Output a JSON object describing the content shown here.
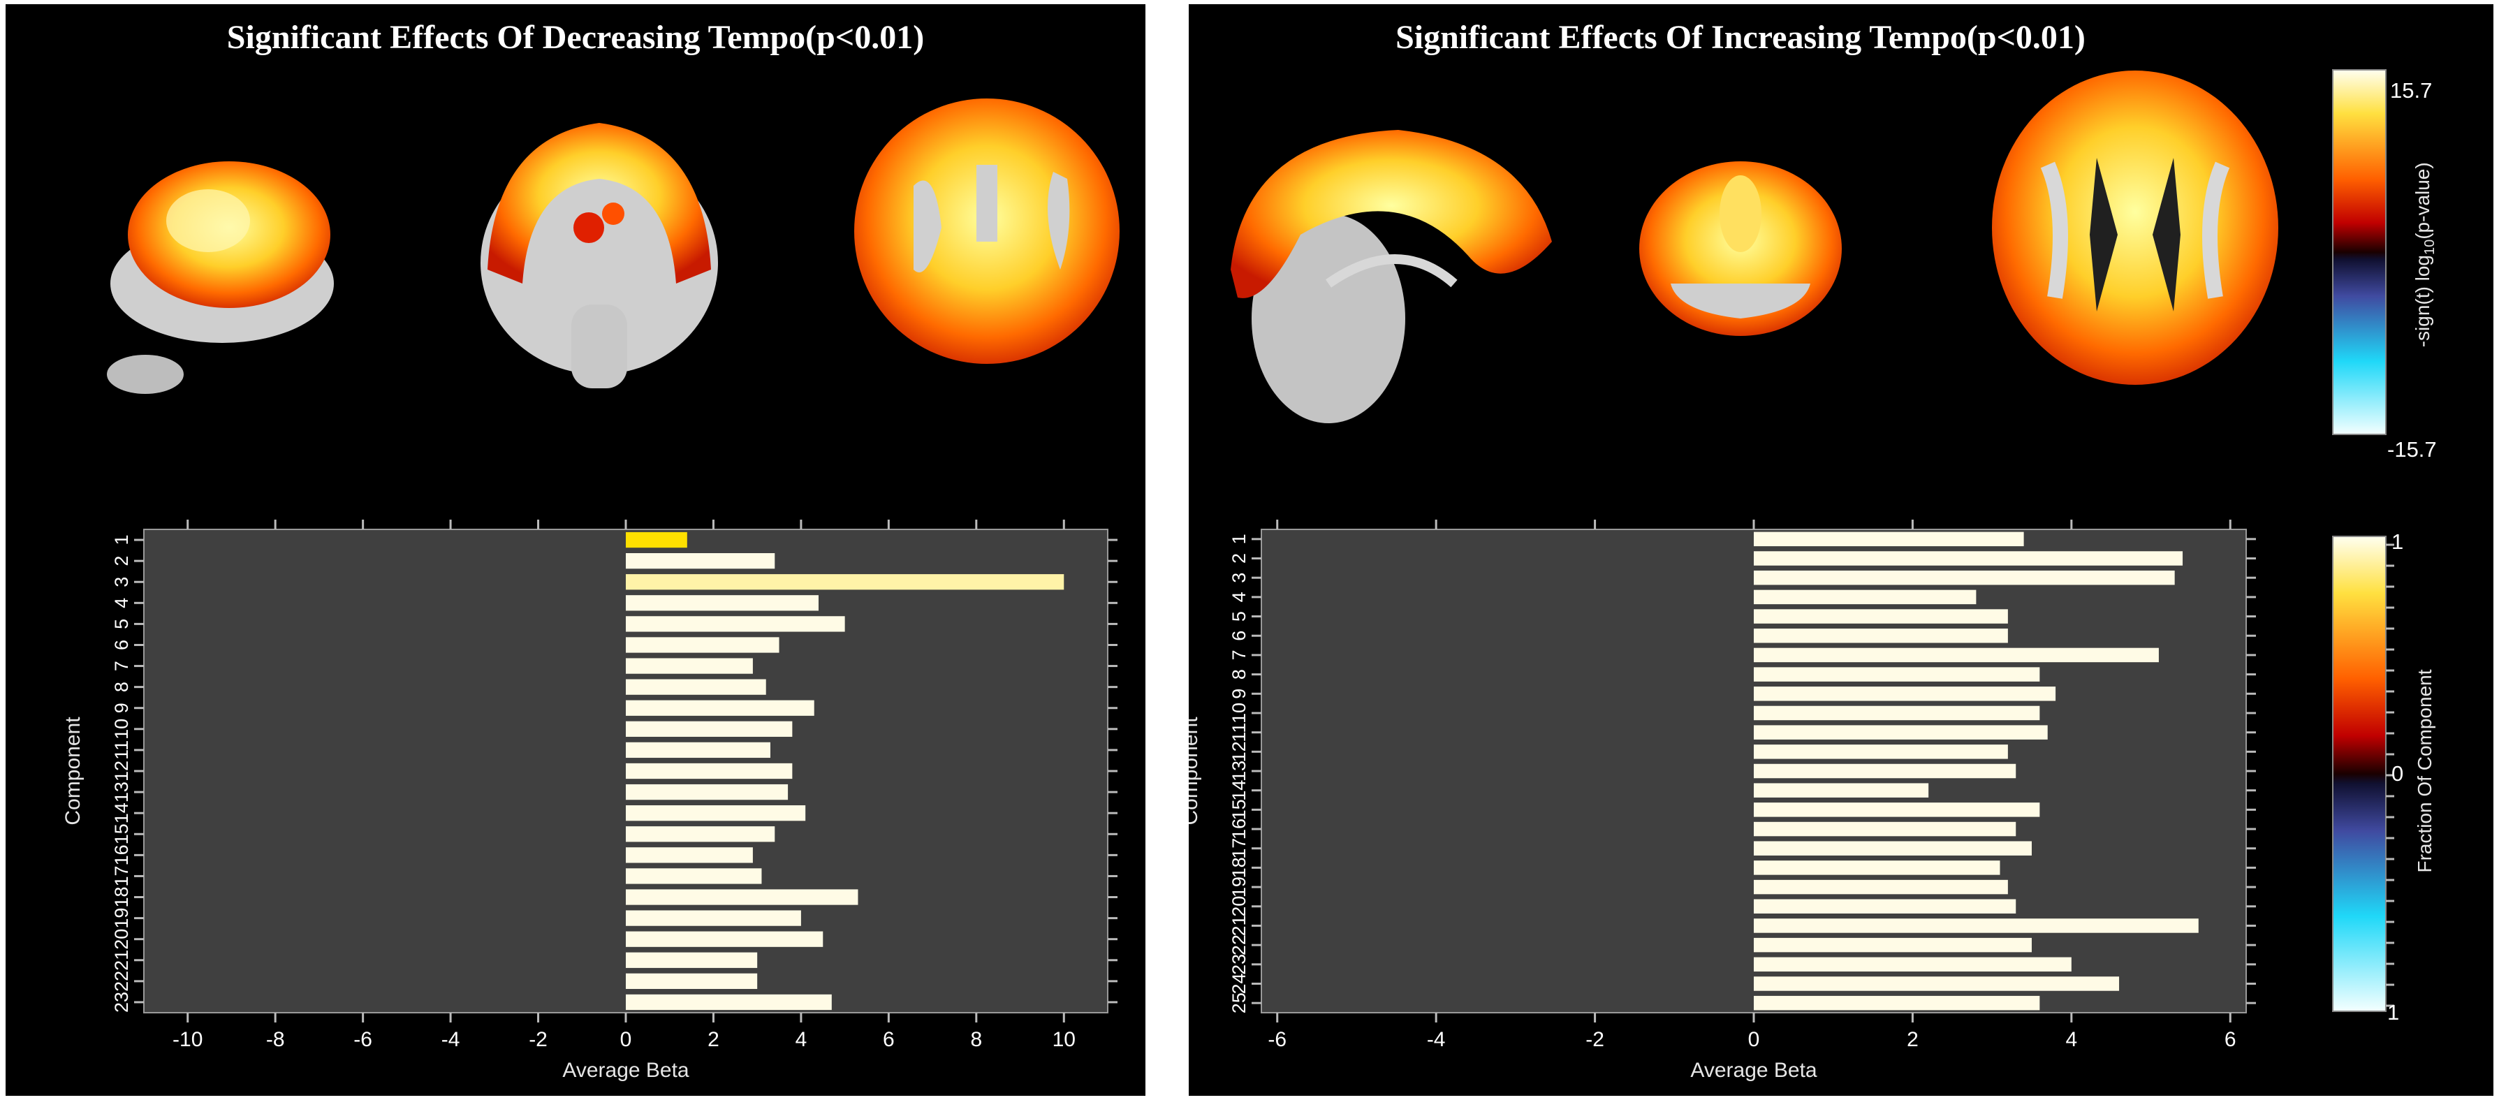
{
  "panels": {
    "left": {
      "title": "Significant Effects Of Decreasing Tempo(p<0.01)"
    },
    "right": {
      "title": "Significant Effects Of Increasing Tempo(p<0.01)"
    }
  },
  "colorbars": {
    "pvalue": {
      "title": "-sign(t) log",
      "title_sub": "10",
      "title_end": "(p-value)",
      "max_label": "15.7",
      "min_label": "-15.7"
    },
    "fraction": {
      "title": "Fraction Of Component",
      "top_label": "1",
      "mid_label": "0",
      "bottom_label": "1"
    }
  },
  "colors": {
    "plot_bg": "#404040",
    "bar": "#fffbe6",
    "bar_highlight_1": "#ffe000",
    "bar_highlight_3": "#fff3a8",
    "panel_bg": "#000000"
  },
  "chart_data": [
    {
      "type": "bar",
      "orientation": "horizontal",
      "title": "Significant Effects Of Decreasing Tempo(p<0.01)",
      "xlabel": "Average Beta",
      "ylabel": "Component",
      "xlim": [
        -11,
        11
      ],
      "xticks": [
        -10,
        -8,
        -6,
        -4,
        -2,
        0,
        2,
        4,
        6,
        8,
        10
      ],
      "categories": [
        "1",
        "2",
        "3",
        "4",
        "5",
        "6",
        "7",
        "8",
        "9",
        "10",
        "11",
        "12",
        "13",
        "14",
        "15",
        "16",
        "17",
        "18",
        "19",
        "20",
        "21",
        "22",
        "23"
      ],
      "values": [
        1.4,
        3.4,
        10.0,
        4.4,
        5.0,
        3.5,
        2.9,
        3.2,
        4.3,
        3.8,
        3.3,
        3.8,
        3.7,
        4.1,
        3.4,
        2.9,
        3.1,
        5.3,
        4.0,
        4.5,
        3.0,
        3.0,
        4.7
      ],
      "grid": false
    },
    {
      "type": "bar",
      "orientation": "horizontal",
      "title": "Significant Effects Of Increasing Tempo(p<0.01)",
      "xlabel": "Average Beta",
      "ylabel": "Component",
      "xlim": [
        -6.2,
        6.2
      ],
      "xticks": [
        -6,
        -4,
        -2,
        0,
        2,
        4,
        6
      ],
      "categories": [
        "1",
        "2",
        "3",
        "4",
        "5",
        "6",
        "7",
        "8",
        "9",
        "10",
        "11",
        "12",
        "13",
        "14",
        "15",
        "16",
        "17",
        "18",
        "19",
        "20",
        "21",
        "22",
        "23",
        "24",
        "25"
      ],
      "values": [
        3.4,
        5.4,
        5.3,
        2.8,
        3.2,
        3.2,
        5.1,
        3.6,
        3.8,
        3.6,
        3.7,
        3.2,
        3.3,
        2.2,
        3.6,
        3.3,
        3.5,
        3.1,
        3.2,
        3.3,
        5.6,
        3.5,
        4.0,
        4.6,
        3.6
      ],
      "grid": false
    }
  ]
}
